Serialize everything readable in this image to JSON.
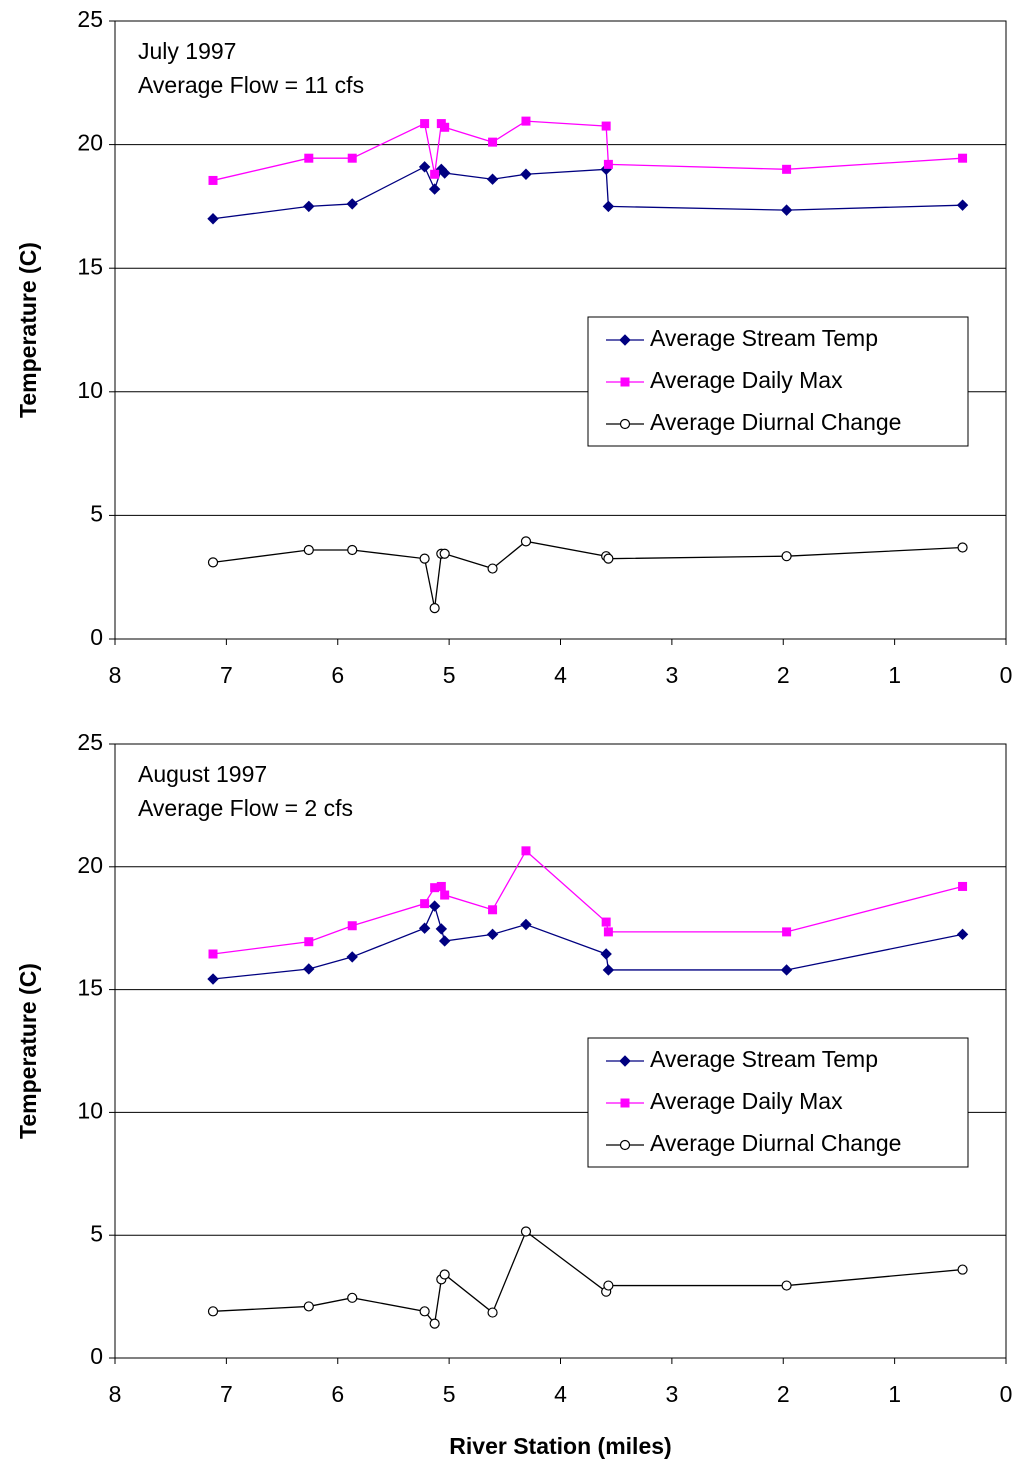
{
  "chart_data": [
    {
      "type": "line",
      "annotations": [
        "July 1997",
        "Average Flow = 11 cfs"
      ],
      "y_label": "Temperature (C)",
      "x": [
        7.12,
        6.26,
        5.87,
        5.22,
        5.13,
        5.07,
        5.04,
        4.61,
        4.31,
        3.59,
        3.57,
        1.97,
        0.39
      ],
      "series": [
        {
          "name": "Average Stream Temp",
          "color": "#000080",
          "marker": "diamond",
          "values": [
            17.0,
            17.5,
            17.6,
            19.1,
            18.2,
            19.0,
            18.85,
            18.6,
            18.8,
            19.0,
            17.5,
            17.35,
            17.55
          ]
        },
        {
          "name": "Average Daily Max",
          "color": "#ff00ff",
          "marker": "square",
          "values": [
            18.55,
            19.45,
            19.45,
            20.85,
            18.8,
            20.85,
            20.7,
            20.1,
            20.95,
            20.75,
            19.2,
            19.0,
            19.45
          ]
        },
        {
          "name": "Average Diurnal Change",
          "color": "#000000",
          "marker": "circle",
          "values": [
            3.1,
            3.6,
            3.6,
            3.25,
            1.25,
            3.45,
            3.45,
            2.85,
            3.95,
            3.35,
            3.25,
            3.35,
            3.7
          ]
        }
      ],
      "xlim": [
        8,
        0
      ],
      "xticks": [
        8,
        7,
        6,
        5,
        4,
        3,
        2,
        1,
        0
      ],
      "ylim": [
        0,
        25
      ],
      "yticks": [
        0,
        5,
        10,
        15,
        20,
        25
      ],
      "grid": true
    },
    {
      "type": "line",
      "annotations": [
        "August 1997",
        "Average Flow = 2 cfs"
      ],
      "y_label": "Temperature (C)",
      "x_label": "River Station (miles)",
      "x": [
        7.12,
        6.26,
        5.87,
        5.22,
        5.13,
        5.07,
        5.04,
        4.61,
        4.31,
        3.59,
        3.57,
        1.97,
        0.39
      ],
      "series": [
        {
          "name": "Average Stream Temp",
          "color": "#000080",
          "marker": "diamond",
          "values": [
            15.43,
            15.84,
            16.33,
            17.5,
            18.4,
            17.47,
            16.98,
            17.25,
            17.65,
            16.45,
            15.8,
            15.8,
            17.25
          ]
        },
        {
          "name": "Average Daily Max",
          "color": "#ff00ff",
          "marker": "square",
          "values": [
            16.45,
            16.95,
            17.6,
            18.5,
            19.15,
            19.2,
            18.85,
            18.25,
            20.65,
            17.75,
            17.35,
            17.35,
            19.2
          ]
        },
        {
          "name": "Average Diurnal Change",
          "color": "#000000",
          "marker": "circle",
          "values": [
            1.9,
            2.1,
            2.45,
            1.9,
            1.4,
            3.2,
            3.4,
            1.85,
            5.15,
            2.7,
            2.95,
            2.95,
            3.6
          ]
        }
      ],
      "xlim": [
        8,
        0
      ],
      "xticks": [
        8,
        7,
        6,
        5,
        4,
        3,
        2,
        1,
        0
      ],
      "ylim": [
        0,
        25
      ],
      "yticks": [
        0,
        5,
        10,
        15,
        20,
        25
      ],
      "grid": true
    }
  ]
}
